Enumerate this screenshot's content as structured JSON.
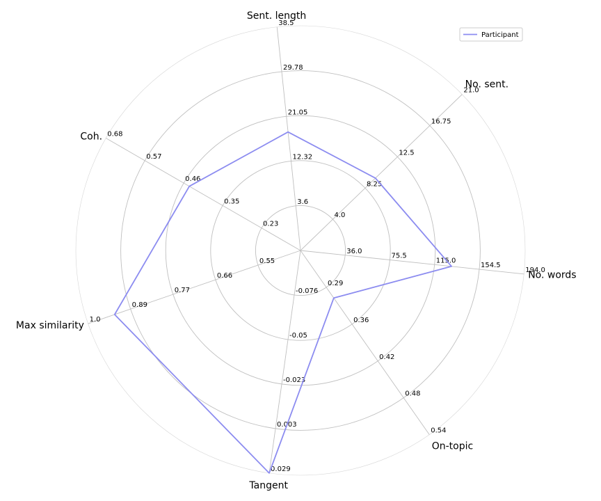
{
  "chart_data": {
    "type": "radar",
    "axes": [
      {
        "label": "No. words",
        "ticks": [
          "36.0",
          "75.5",
          "115.0",
          "154.5",
          "194.0"
        ],
        "min": -3.5,
        "max": 194.0,
        "value": 130
      },
      {
        "label": "No. sent.",
        "ticks": [
          "4.0",
          "8.25",
          "12.5",
          "16.75",
          "21.0"
        ],
        "min": -0.25,
        "max": 21.0,
        "value": 9.6
      },
      {
        "label": "Sent. length",
        "ticks": [
          "3.6",
          "12.32",
          "21.05",
          "29.78",
          "38.5"
        ],
        "min": -5.13,
        "max": 38.5,
        "value": 18.0
      },
      {
        "label": "Coh.",
        "ticks": [
          "0.23",
          "0.35",
          "0.46",
          "0.57",
          "0.68"
        ],
        "min": 0.12,
        "max": 0.68,
        "value": 0.44
      },
      {
        "label": "Max similarity",
        "ticks": [
          "0.55",
          "0.66",
          "0.77",
          "0.89",
          "1.0"
        ],
        "min": 0.44,
        "max": 1.0,
        "value": 0.93
      },
      {
        "label": "Tangent",
        "ticks": [
          "-0.076",
          "-0.05",
          "-0.023",
          "0.003",
          "0.029"
        ],
        "min": -0.102,
        "max": 0.029,
        "value": 0.029
      },
      {
        "label": "On-topic",
        "ticks": [
          "0.29",
          "0.36",
          "0.42",
          "0.48",
          "0.54"
        ],
        "min": 0.23,
        "max": 0.54,
        "value": 0.31
      }
    ],
    "series": [
      {
        "name": "Participant",
        "color": "#8c8cf0"
      }
    ],
    "legend_position": "top-right",
    "grid": true
  }
}
